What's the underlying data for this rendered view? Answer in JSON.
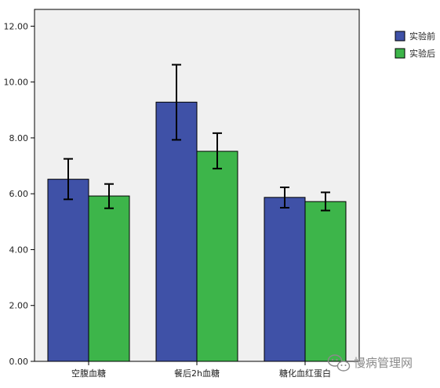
{
  "chart_data": {
    "type": "bar",
    "title": "",
    "xlabel": "",
    "ylabel": "",
    "categories": [
      "空腹血糖",
      "餐后2h血糖",
      "糖化血红蛋白"
    ],
    "series": [
      {
        "name": "实验前",
        "color": "#3f51a7",
        "values": [
          6.52,
          9.28,
          5.87
        ],
        "error_low": [
          5.8,
          7.93,
          5.5
        ],
        "error_high": [
          7.25,
          10.62,
          6.23
        ]
      },
      {
        "name": "实验后",
        "color": "#3db54a",
        "values": [
          5.92,
          7.52,
          5.72
        ],
        "error_low": [
          5.48,
          6.9,
          5.4
        ],
        "error_high": [
          6.35,
          8.17,
          6.05
        ]
      }
    ],
    "ylim": [
      0,
      12.6
    ],
    "yticks": [
      0,
      2,
      4,
      6,
      8,
      10,
      12
    ],
    "ytick_labels": [
      "0.00",
      "2.00",
      "4.00",
      "6.00",
      "8.00",
      "10.00",
      "12.00"
    ],
    "grid": false,
    "legend_position": "top-right",
    "plot_background": "#f0f0f0"
  },
  "watermark": {
    "text": "慢病管理网",
    "icon": "wechat-icon"
  }
}
